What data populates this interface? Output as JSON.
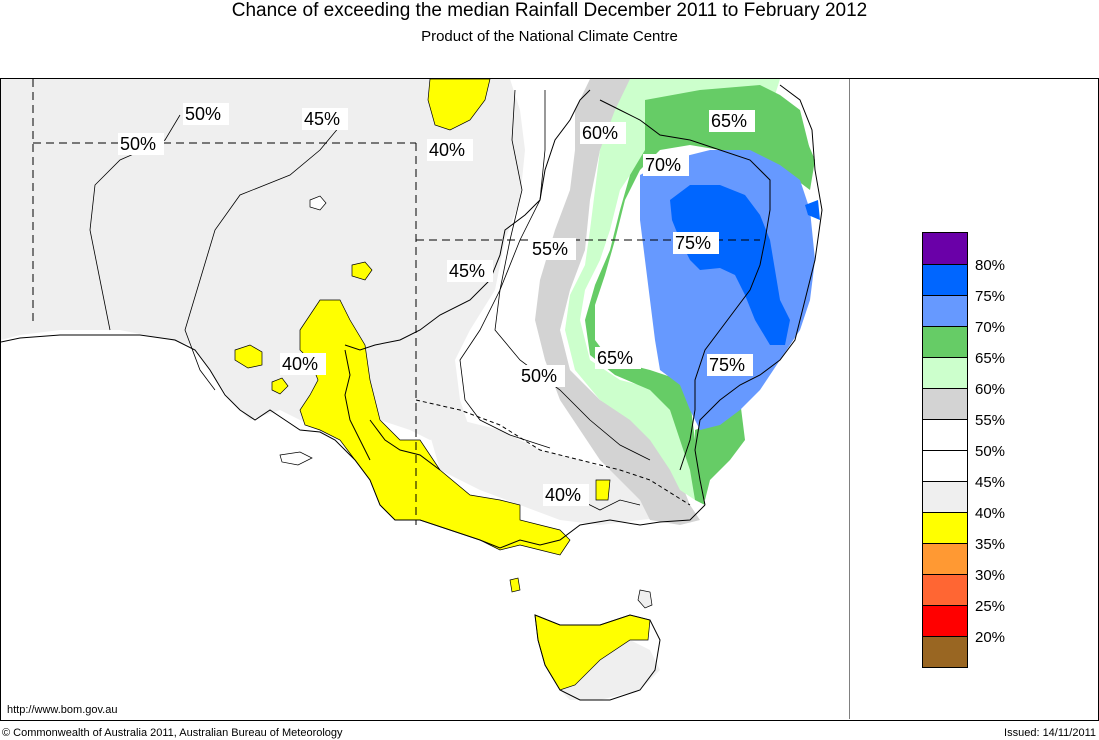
{
  "title": "Chance of exceeding the median Rainfall December 2011 to February 2012",
  "subtitle": "Product of the National Climate Centre",
  "map_labels": {
    "l50a": "50%",
    "l50b": "50%",
    "l45a": "45%",
    "l40a": "40%",
    "l60": "60%",
    "l65a": "65%",
    "l70": "70%",
    "l55": "55%",
    "l75a": "75%",
    "l45b": "45%",
    "l40b": "40%",
    "l65b": "65%",
    "l75b": "75%",
    "l50c": "50%",
    "l40c": "40%"
  },
  "legend": {
    "items": [
      {
        "label": "80%",
        "color": "#6a00a8"
      },
      {
        "label": "75%",
        "color": "#0066ff"
      },
      {
        "label": "70%",
        "color": "#6699ff"
      },
      {
        "label": "65%",
        "color": "#66cc66"
      },
      {
        "label": "60%",
        "color": "#ccffcc"
      },
      {
        "label": "55%",
        "color": "#d3d3d3"
      },
      {
        "label": "50%",
        "color": "#ffffff"
      },
      {
        "label": "45%",
        "color": "#ffffff"
      },
      {
        "label": "40%",
        "color": "#efefef"
      },
      {
        "label": "35%",
        "color": "#ffff00"
      },
      {
        "label": "30%",
        "color": "#ff9933"
      },
      {
        "label": "25%",
        "color": "#ff6633"
      },
      {
        "label": "20%",
        "color": "#ff0000"
      },
      {
        "label": "",
        "color": "#996622"
      }
    ]
  },
  "footer": {
    "url": "http://www.bom.gov.au",
    "copyright": "© Commonwealth of Australia 2011, Australian Bureau of Meteorology",
    "issued": "Issued: 14/11/2011"
  }
}
